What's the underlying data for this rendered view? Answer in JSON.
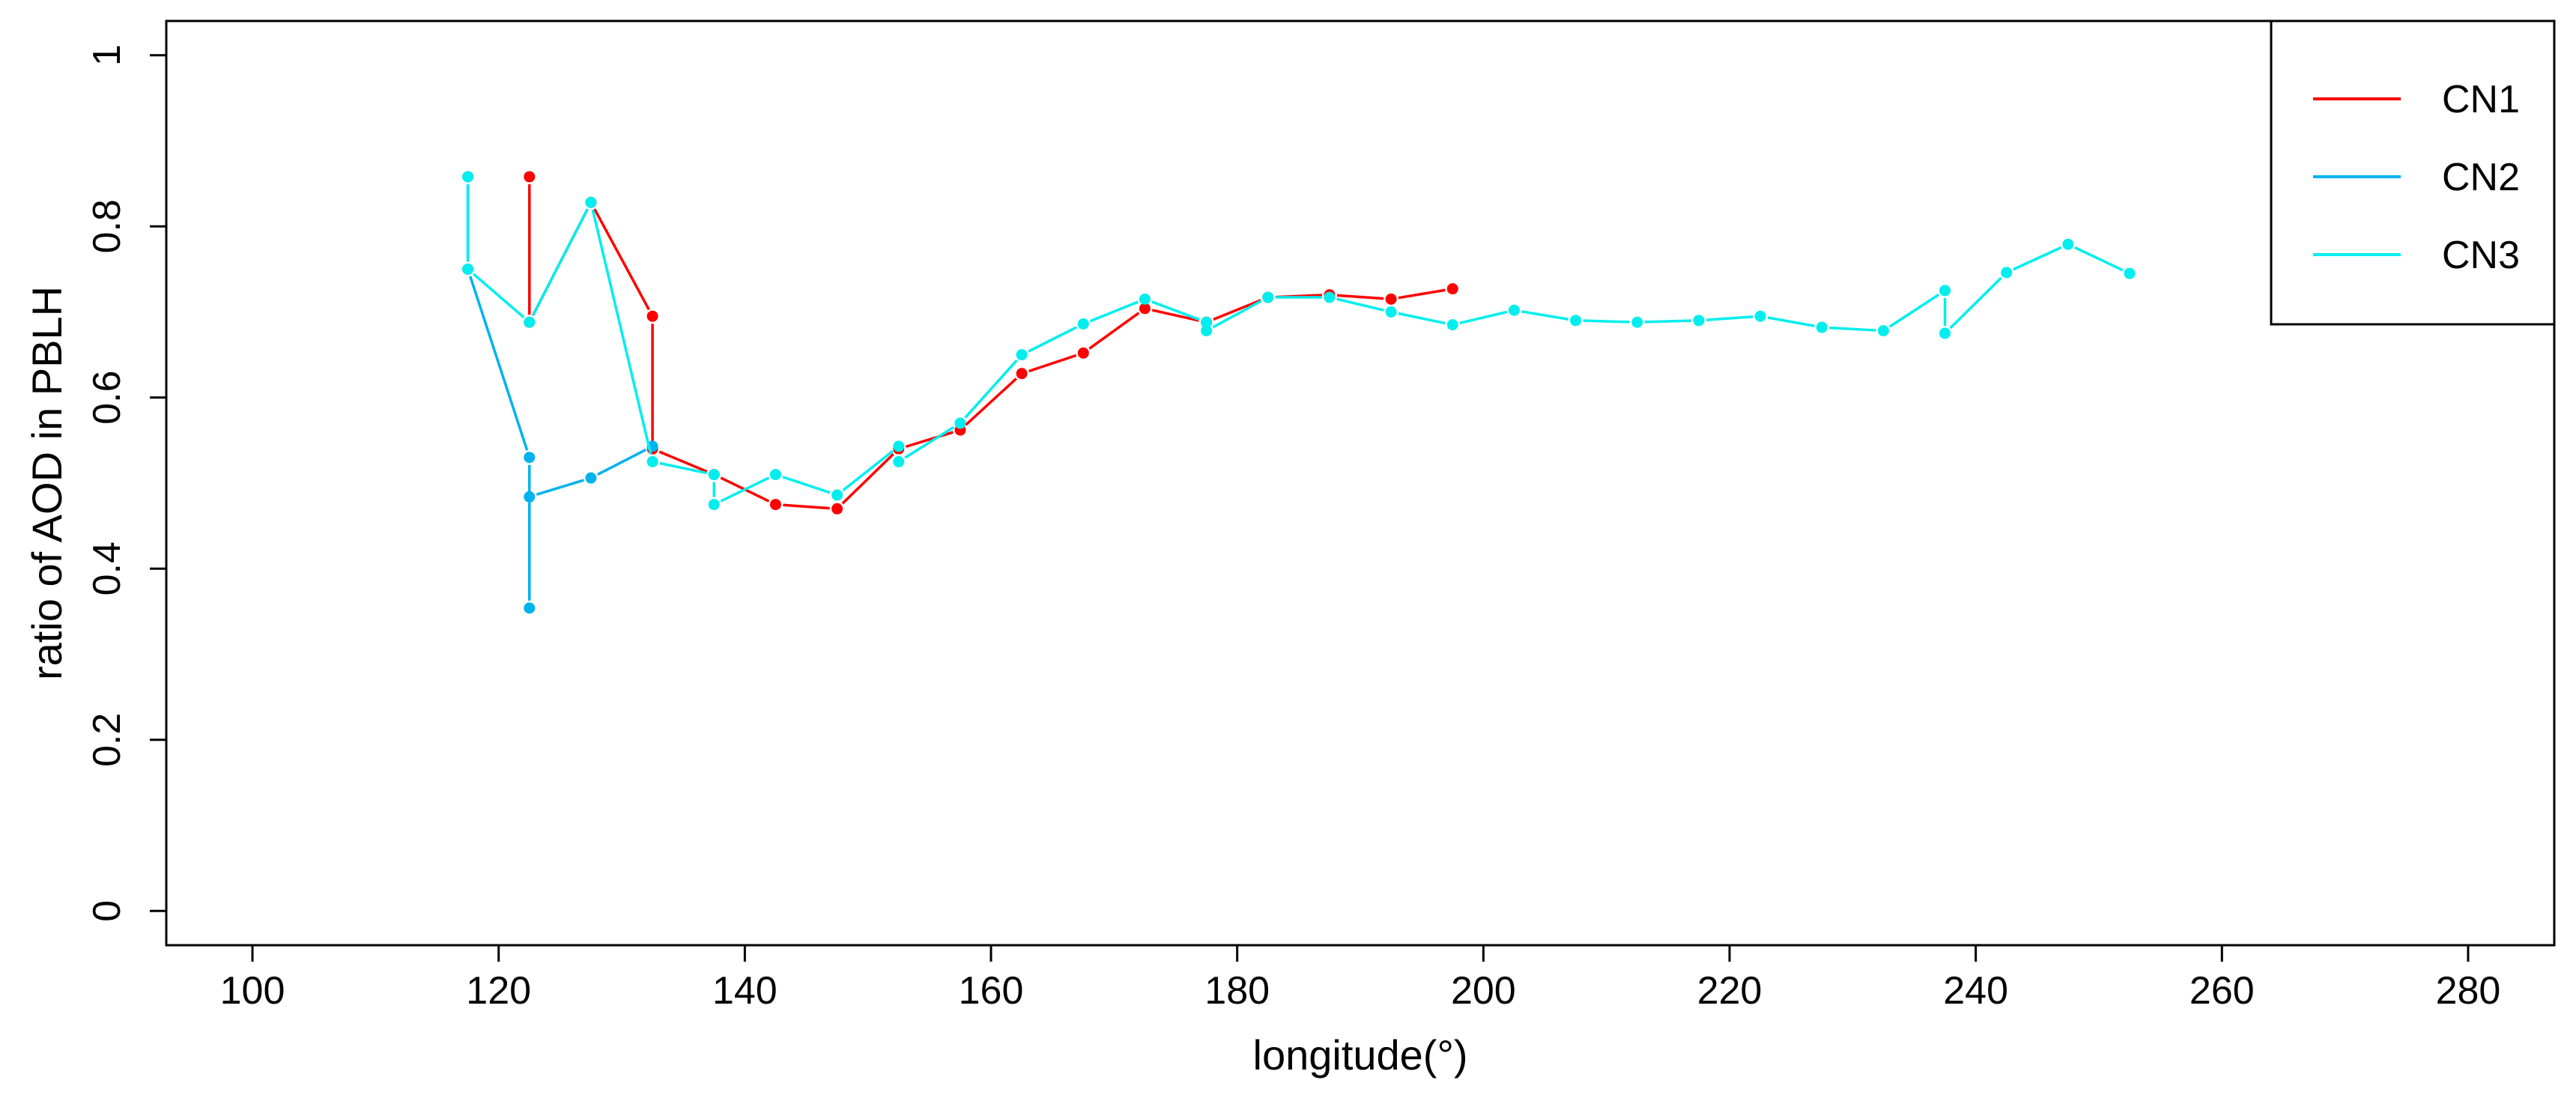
{
  "chart_data": {
    "type": "line",
    "xlabel": "longitude(°)",
    "ylabel": "ratio of AOD in PBLH",
    "xlim": [
      93,
      287
    ],
    "ylim": [
      -0.04,
      1.04
    ],
    "x_ticks": [
      100,
      120,
      140,
      160,
      180,
      200,
      220,
      240,
      260,
      280
    ],
    "y_ticks": [
      0,
      0.2,
      0.4,
      0.6,
      0.8,
      1
    ],
    "grid": false,
    "legend_position": "top-right",
    "line_style": "stepped, with a vertical segment and a gap at each longitude",
    "series": [
      {
        "name": "CN1",
        "color": "#ff0000",
        "points": [
          {
            "x": 122.5,
            "y0": 0.688,
            "y1": 0.858
          },
          {
            "x": 127.5,
            "y0": 0.828,
            "y1": 0.828
          },
          {
            "x": 132.5,
            "y0": 0.54,
            "y1": 0.695
          },
          {
            "x": 137.5,
            "y0": 0.51,
            "y1": 0.51
          },
          {
            "x": 142.5,
            "y0": 0.475,
            "y1": 0.475
          },
          {
            "x": 147.5,
            "y0": 0.47,
            "y1": 0.47
          },
          {
            "x": 152.5,
            "y0": 0.54,
            "y1": 0.54
          },
          {
            "x": 157.5,
            "y0": 0.562,
            "y1": 0.562
          },
          {
            "x": 162.5,
            "y0": 0.628,
            "y1": 0.628
          },
          {
            "x": 167.5,
            "y0": 0.652,
            "y1": 0.652
          },
          {
            "x": 172.5,
            "y0": 0.704,
            "y1": 0.704
          },
          {
            "x": 177.5,
            "y0": 0.688,
            "y1": 0.688
          },
          {
            "x": 182.5,
            "y0": 0.717,
            "y1": 0.717
          },
          {
            "x": 187.5,
            "y0": 0.72,
            "y1": 0.72
          },
          {
            "x": 192.5,
            "y0": 0.715,
            "y1": 0.715
          },
          {
            "x": 197.5,
            "y0": 0.727,
            "y1": 0.727
          }
        ]
      },
      {
        "name": "CN2",
        "color": "#00b2ee",
        "points": [
          {
            "x": 117.5,
            "y0": 0.75,
            "y1": 0.858
          },
          {
            "x": 122.5,
            "y0": 0.354,
            "y1": 0.53
          },
          {
            "x": 122.5,
            "y0": 0.484,
            "y1": 0.484
          },
          {
            "x": 127.5,
            "y0": 0.506,
            "y1": 0.506
          },
          {
            "x": 132.5,
            "y0": 0.543,
            "y1": 0.543
          }
        ]
      },
      {
        "name": "CN3",
        "color": "#00eeee",
        "points": [
          {
            "x": 117.5,
            "y0": 0.75,
            "y1": 0.858
          },
          {
            "x": 122.5,
            "y0": 0.688,
            "y1": 0.688
          },
          {
            "x": 127.5,
            "y0": 0.828,
            "y1": 0.828
          },
          {
            "x": 132.5,
            "y0": 0.525,
            "y1": 0.525
          },
          {
            "x": 137.5,
            "y0": 0.475,
            "y1": 0.51
          },
          {
            "x": 142.5,
            "y0": 0.51,
            "y1": 0.51
          },
          {
            "x": 147.5,
            "y0": 0.486,
            "y1": 0.486
          },
          {
            "x": 152.5,
            "y0": 0.525,
            "y1": 0.543
          },
          {
            "x": 157.5,
            "y0": 0.57,
            "y1": 0.57
          },
          {
            "x": 162.5,
            "y0": 0.65,
            "y1": 0.65
          },
          {
            "x": 167.5,
            "y0": 0.686,
            "y1": 0.686
          },
          {
            "x": 172.5,
            "y0": 0.715,
            "y1": 0.715
          },
          {
            "x": 177.5,
            "y0": 0.678,
            "y1": 0.688
          },
          {
            "x": 182.5,
            "y0": 0.717,
            "y1": 0.717
          },
          {
            "x": 187.5,
            "y0": 0.717,
            "y1": 0.717
          },
          {
            "x": 192.5,
            "y0": 0.7,
            "y1": 0.7
          },
          {
            "x": 197.5,
            "y0": 0.685,
            "y1": 0.685
          },
          {
            "x": 202.5,
            "y0": 0.702,
            "y1": 0.702
          },
          {
            "x": 207.5,
            "y0": 0.69,
            "y1": 0.69
          },
          {
            "x": 212.5,
            "y0": 0.688,
            "y1": 0.688
          },
          {
            "x": 217.5,
            "y0": 0.69,
            "y1": 0.69
          },
          {
            "x": 222.5,
            "y0": 0.695,
            "y1": 0.695
          },
          {
            "x": 227.5,
            "y0": 0.682,
            "y1": 0.682
          },
          {
            "x": 232.5,
            "y0": 0.678,
            "y1": 0.678
          },
          {
            "x": 237.5,
            "y0": 0.675,
            "y1": 0.725
          },
          {
            "x": 242.5,
            "y0": 0.746,
            "y1": 0.746
          },
          {
            "x": 247.5,
            "y0": 0.779,
            "y1": 0.779
          },
          {
            "x": 252.5,
            "y0": 0.745,
            "y1": 0.745
          }
        ]
      }
    ]
  }
}
